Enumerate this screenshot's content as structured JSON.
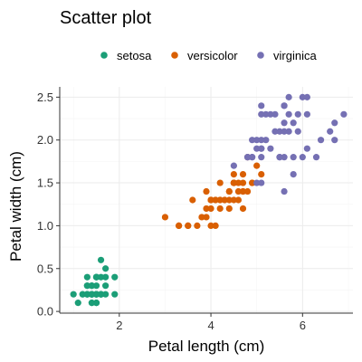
{
  "chart_data": {
    "type": "scatter",
    "title": "Scatter plot",
    "xlabel": "Petal length (cm)",
    "ylabel": "Petal width (cm)",
    "xlim": [
      0.7,
      7.1
    ],
    "ylim": [
      -0.02,
      2.62
    ],
    "x_ticks": [
      2,
      4,
      6
    ],
    "x_tick_labels": [
      "2",
      "4",
      "6"
    ],
    "y_ticks": [
      0,
      0.5,
      1,
      1.5,
      2,
      2.5
    ],
    "y_tick_labels": [
      "0.0",
      "0.5",
      "1.0",
      "1.5",
      "2.0",
      "2.5"
    ],
    "grid": true,
    "legend": {
      "position": "top"
    },
    "series": [
      {
        "name": "setosa",
        "color": "#1b9e77",
        "points": [
          [
            1.4,
            0.2
          ],
          [
            1.4,
            0.2
          ],
          [
            1.3,
            0.2
          ],
          [
            1.5,
            0.2
          ],
          [
            1.4,
            0.2
          ],
          [
            1.7,
            0.4
          ],
          [
            1.4,
            0.3
          ],
          [
            1.5,
            0.2
          ],
          [
            1.4,
            0.2
          ],
          [
            1.5,
            0.1
          ],
          [
            1.5,
            0.2
          ],
          [
            1.6,
            0.2
          ],
          [
            1.4,
            0.1
          ],
          [
            1.1,
            0.1
          ],
          [
            1.2,
            0.2
          ],
          [
            1.5,
            0.4
          ],
          [
            1.3,
            0.4
          ],
          [
            1.4,
            0.3
          ],
          [
            1.7,
            0.3
          ],
          [
            1.5,
            0.3
          ],
          [
            1.7,
            0.2
          ],
          [
            1.5,
            0.4
          ],
          [
            1.0,
            0.2
          ],
          [
            1.7,
            0.5
          ],
          [
            1.9,
            0.2
          ],
          [
            1.6,
            0.2
          ],
          [
            1.6,
            0.4
          ],
          [
            1.5,
            0.2
          ],
          [
            1.4,
            0.2
          ],
          [
            1.6,
            0.2
          ],
          [
            1.6,
            0.2
          ],
          [
            1.5,
            0.4
          ],
          [
            1.5,
            0.1
          ],
          [
            1.4,
            0.2
          ],
          [
            1.5,
            0.2
          ],
          [
            1.2,
            0.2
          ],
          [
            1.3,
            0.2
          ],
          [
            1.4,
            0.1
          ],
          [
            1.3,
            0.2
          ],
          [
            1.5,
            0.2
          ],
          [
            1.3,
            0.3
          ],
          [
            1.3,
            0.3
          ],
          [
            1.3,
            0.2
          ],
          [
            1.6,
            0.6
          ],
          [
            1.9,
            0.4
          ],
          [
            1.4,
            0.3
          ],
          [
            1.6,
            0.2
          ],
          [
            1.4,
            0.2
          ],
          [
            1.5,
            0.2
          ],
          [
            1.4,
            0.2
          ]
        ]
      },
      {
        "name": "versicolor",
        "color": "#d95f02",
        "points": [
          [
            4.7,
            1.4
          ],
          [
            4.5,
            1.5
          ],
          [
            4.9,
            1.5
          ],
          [
            4.0,
            1.3
          ],
          [
            4.6,
            1.5
          ],
          [
            4.5,
            1.3
          ],
          [
            4.7,
            1.6
          ],
          [
            3.3,
            1.0
          ],
          [
            4.6,
            1.3
          ],
          [
            3.9,
            1.4
          ],
          [
            3.5,
            1.0
          ],
          [
            4.2,
            1.5
          ],
          [
            4.0,
            1.0
          ],
          [
            4.7,
            1.4
          ],
          [
            3.6,
            1.3
          ],
          [
            4.4,
            1.4
          ],
          [
            4.5,
            1.5
          ],
          [
            4.1,
            1.0
          ],
          [
            4.5,
            1.5
          ],
          [
            3.9,
            1.1
          ],
          [
            4.8,
            1.8
          ],
          [
            4.0,
            1.3
          ],
          [
            4.9,
            1.5
          ],
          [
            4.7,
            1.2
          ],
          [
            4.3,
            1.3
          ],
          [
            4.4,
            1.4
          ],
          [
            4.8,
            1.4
          ],
          [
            5.0,
            1.7
          ],
          [
            4.5,
            1.5
          ],
          [
            3.5,
            1.0
          ],
          [
            3.8,
            1.1
          ],
          [
            3.7,
            1.0
          ],
          [
            3.9,
            1.2
          ],
          [
            5.1,
            1.6
          ],
          [
            4.5,
            1.5
          ],
          [
            4.5,
            1.6
          ],
          [
            4.7,
            1.5
          ],
          [
            4.4,
            1.3
          ],
          [
            4.1,
            1.3
          ],
          [
            4.0,
            1.3
          ],
          [
            4.4,
            1.2
          ],
          [
            4.6,
            1.4
          ],
          [
            4.0,
            1.2
          ],
          [
            3.3,
            1.0
          ],
          [
            4.2,
            1.3
          ],
          [
            4.2,
            1.2
          ],
          [
            4.2,
            1.3
          ],
          [
            4.3,
            1.3
          ],
          [
            3.0,
            1.1
          ],
          [
            4.1,
            1.3
          ]
        ]
      },
      {
        "name": "virginica",
        "color": "#7570b3",
        "points": [
          [
            6.0,
            2.5
          ],
          [
            5.1,
            1.9
          ],
          [
            5.9,
            2.1
          ],
          [
            5.6,
            1.8
          ],
          [
            5.8,
            2.2
          ],
          [
            6.6,
            2.1
          ],
          [
            4.5,
            1.7
          ],
          [
            6.3,
            1.8
          ],
          [
            5.8,
            1.8
          ],
          [
            6.1,
            2.5
          ],
          [
            5.1,
            2.0
          ],
          [
            5.3,
            1.9
          ],
          [
            5.5,
            2.1
          ],
          [
            5.0,
            2.0
          ],
          [
            5.1,
            2.4
          ],
          [
            5.3,
            2.3
          ],
          [
            5.5,
            1.8
          ],
          [
            6.7,
            2.2
          ],
          [
            6.9,
            2.3
          ],
          [
            5.0,
            1.5
          ],
          [
            5.7,
            2.3
          ],
          [
            4.9,
            2.0
          ],
          [
            6.7,
            2.0
          ],
          [
            4.9,
            1.8
          ],
          [
            5.7,
            2.1
          ],
          [
            6.0,
            1.8
          ],
          [
            4.8,
            1.8
          ],
          [
            4.9,
            1.8
          ],
          [
            5.6,
            2.1
          ],
          [
            5.8,
            1.6
          ],
          [
            6.1,
            1.9
          ],
          [
            6.4,
            2.0
          ],
          [
            5.6,
            2.2
          ],
          [
            5.1,
            1.5
          ],
          [
            5.6,
            1.4
          ],
          [
            6.1,
            2.3
          ],
          [
            5.6,
            2.4
          ],
          [
            5.5,
            1.8
          ],
          [
            4.8,
            1.8
          ],
          [
            5.4,
            2.1
          ],
          [
            5.6,
            2.4
          ],
          [
            5.1,
            2.3
          ],
          [
            5.1,
            1.9
          ],
          [
            5.9,
            2.3
          ],
          [
            5.7,
            2.5
          ],
          [
            5.2,
            2.3
          ],
          [
            5.0,
            1.9
          ],
          [
            5.2,
            2.0
          ],
          [
            5.4,
            2.3
          ],
          [
            5.1,
            1.8
          ]
        ]
      }
    ]
  }
}
